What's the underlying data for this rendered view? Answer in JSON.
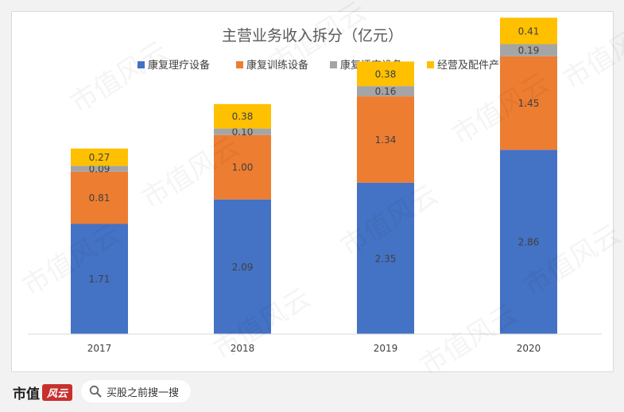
{
  "chart_data": {
    "type": "bar",
    "stacked": true,
    "title": "主营业务收入拆分（亿元）",
    "categories": [
      "2017",
      "2018",
      "2019",
      "2020"
    ],
    "series": [
      {
        "name": "康复理疗设备",
        "color": "#4472c4",
        "values": [
          1.71,
          2.09,
          2.35,
          2.86
        ]
      },
      {
        "name": "康复训练设备",
        "color": "#ed7d31",
        "values": [
          0.81,
          1.0,
          1.34,
          1.45
        ]
      },
      {
        "name": "康复评定设备",
        "color": "#a5a5a5",
        "values": [
          0.09,
          0.1,
          0.16,
          0.19
        ]
      },
      {
        "name": "经营及配件产品",
        "color": "#ffc000",
        "values": [
          0.27,
          0.38,
          0.38,
          0.41
        ]
      }
    ],
    "value_labels": [
      [
        "1.71",
        "2.09",
        "2.35",
        "2.86"
      ],
      [
        "0.81",
        "1.00",
        "1.34",
        "1.45"
      ],
      [
        "0.09",
        "0.10",
        "0.16",
        "0.19"
      ],
      [
        "0.27",
        "0.38",
        "0.38",
        "0.41"
      ]
    ],
    "ylim": [
      0,
      5.0
    ],
    "legend_position": "top",
    "grid": false
  },
  "watermark": "市值风云",
  "footer": {
    "brand_main": "市值",
    "brand_badge": "风云",
    "search_icon": "search-icon",
    "search_label": "买股之前搜一搜"
  }
}
